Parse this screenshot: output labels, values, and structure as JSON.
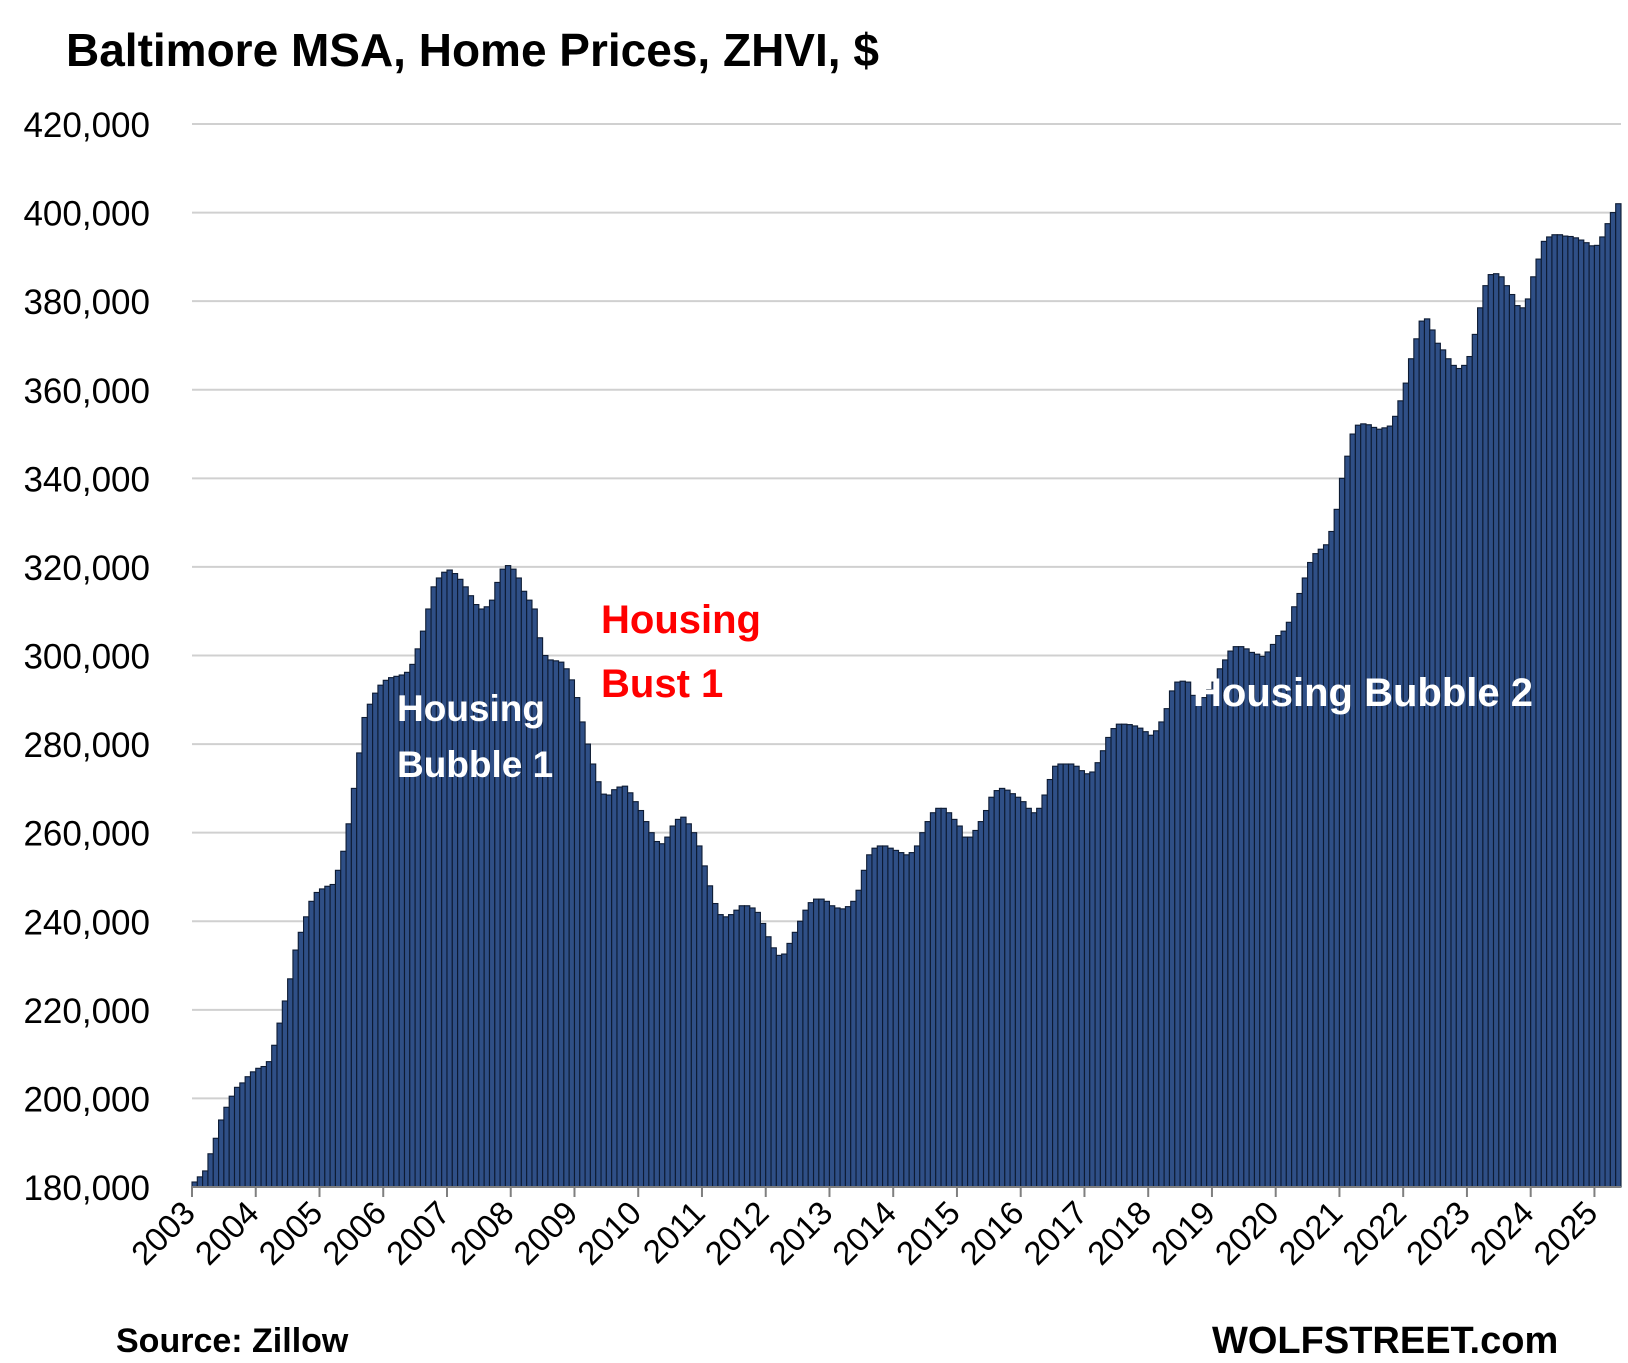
{
  "chart_data": {
    "type": "bar",
    "title": "Baltimore MSA, Home Prices, ZHVI, $",
    "xlabel": "",
    "ylabel": "",
    "ylim": [
      180000,
      420000
    ],
    "yticks": [
      180000,
      200000,
      220000,
      240000,
      260000,
      280000,
      300000,
      320000,
      340000,
      360000,
      380000,
      400000,
      420000
    ],
    "ytick_labels": [
      "180,000",
      "200,000",
      "220,000",
      "240,000",
      "260,000",
      "280,000",
      "300,000",
      "320,000",
      "340,000",
      "360,000",
      "380,000",
      "400,000",
      "420,000"
    ],
    "xtick_labels": [
      "2003",
      "2004",
      "2005",
      "2006",
      "2007",
      "2008",
      "2009",
      "2010",
      "2011",
      "2012",
      "2013",
      "2014",
      "2015",
      "2016",
      "2017",
      "2018",
      "2019",
      "2020",
      "2021",
      "2022",
      "2023",
      "2024",
      "2025"
    ],
    "x_start": "2003-01",
    "frequency": "monthly",
    "grid": "horizontal",
    "bar_color": "#2f4f86",
    "bar_edge_color": "#0d1b33",
    "series": [
      {
        "values": [
          181130,
          182290,
          183630,
          187500,
          191000,
          195130,
          198000,
          200500,
          202500,
          203500,
          204900,
          206000,
          206800,
          207200,
          208300,
          212000,
          217000,
          222000,
          227000,
          233500,
          237500,
          241000,
          244500,
          246500,
          247300,
          247900,
          248300,
          251500,
          255800,
          262000,
          270000,
          278000,
          286000,
          289000,
          291500,
          293300,
          294400,
          295000,
          295300,
          295600,
          296200,
          298000,
          301500,
          305500,
          310500,
          315500,
          317500,
          318800,
          319300,
          318500,
          317200,
          315500,
          313500,
          311500,
          310500,
          311000,
          312500,
          316500,
          319500,
          320300,
          319500,
          317500,
          314500,
          312500,
          310500,
          304000,
          300000,
          299000,
          298800,
          298500,
          297000,
          294500,
          290500,
          285000,
          280000,
          275500,
          271500,
          268700,
          268500,
          269700,
          270300,
          270500,
          269000,
          267000,
          265000,
          262500,
          260000,
          258000,
          257500,
          259000,
          261500,
          263000,
          263500,
          262000,
          260000,
          257000,
          252500,
          248000,
          244000,
          241500,
          241000,
          241500,
          242500,
          243500,
          243500,
          243000,
          242000,
          239500,
          236500,
          234000,
          232300,
          232600,
          235000,
          237500,
          240000,
          242500,
          244200,
          245000,
          245000,
          244500,
          243500,
          243000,
          242800,
          243300,
          244500,
          247000,
          251500,
          255000,
          256500,
          257000,
          257000,
          256500,
          256000,
          255500,
          255000,
          255500,
          257000,
          260000,
          262500,
          264500,
          265500,
          265500,
          264500,
          263000,
          261500,
          259000,
          259000,
          260500,
          262500,
          265000,
          268000,
          269500,
          270000,
          269600,
          268800,
          268000,
          267000,
          265500,
          264500,
          265500,
          268500,
          272000,
          275000,
          275500,
          275500,
          275500,
          275000,
          274000,
          273300,
          273700,
          275800,
          278500,
          281500,
          283500,
          284500,
          284500,
          284400,
          284100,
          283600,
          282800,
          282000,
          283000,
          285000,
          288000,
          292000,
          294000,
          294200,
          294000,
          291000,
          289500,
          290500,
          292300,
          294000,
          297000,
          299000,
          301000,
          302000,
          302000,
          301500,
          300700,
          300300,
          299800,
          300800,
          302500,
          304500,
          305500,
          307500,
          311000,
          314000,
          317500,
          321000,
          323000,
          324000,
          325000,
          328000,
          333000,
          340000,
          345000,
          350000,
          352000,
          352300,
          352100,
          351500,
          351100,
          351400,
          351800,
          354000,
          357500,
          361500,
          367000,
          371500,
          375500,
          376000,
          373500,
          370500,
          369000,
          367000,
          365500,
          364800,
          365500,
          367500,
          372500,
          378500,
          383500,
          386000,
          386200,
          385500,
          383500,
          381500,
          379000,
          378500,
          380500,
          385500,
          389500,
          393500,
          394500,
          395000,
          395000,
          394700,
          394600,
          394300,
          393800,
          393200,
          392500,
          392600,
          394500,
          397500,
          400000,
          402000
        ]
      }
    ]
  },
  "annotations": {
    "bubble1_line1": "Housing",
    "bubble1_line2": "Bubble 1",
    "bust1_line1": "Housing",
    "bust1_line2": "Bust 1",
    "bubble2": "Housing Bubble 2"
  },
  "colors": {
    "bubble_text": "#ffffff",
    "bust_text": "#ff0000",
    "grid": "#d0d0d0",
    "axis": "#7f7f7f"
  },
  "footer": {
    "source": "Source: Zillow",
    "brand": "WOLFSTREET.com"
  }
}
